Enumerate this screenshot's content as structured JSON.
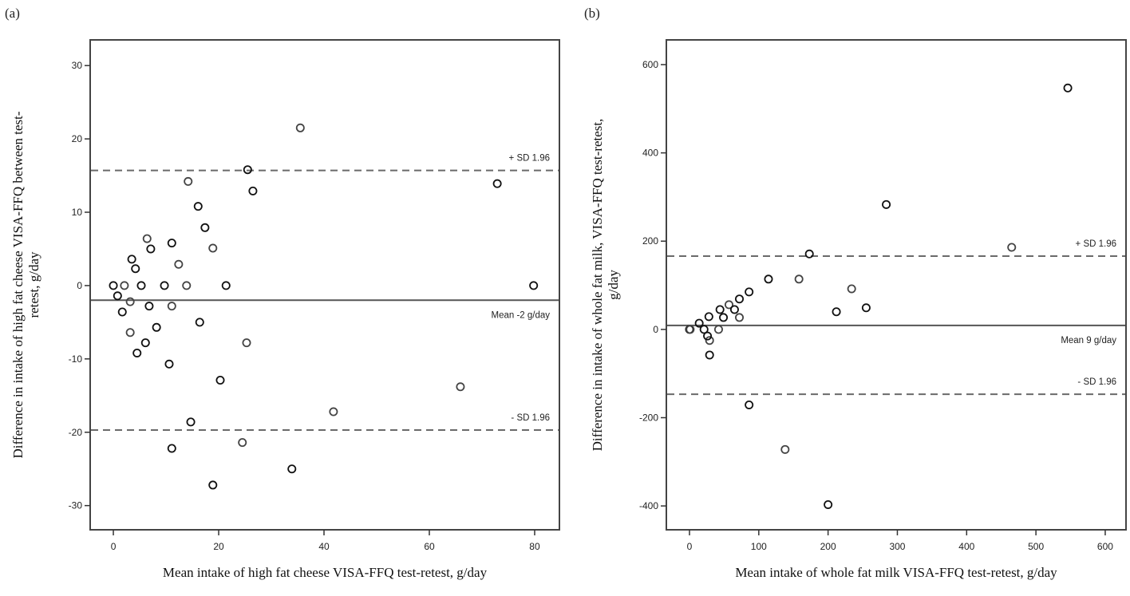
{
  "chart_data": [
    {
      "type": "scatter",
      "panel_label": "(a)",
      "title": "",
      "xlabel": "Mean intake of high fat cheese VISA-FFQ test-retest, g/day",
      "ylabel_lines": [
        "Difference in intake of high fat cheese VISA-FFQ between test-",
        "retest, g/day"
      ],
      "xlim": [
        -4.4,
        84.7
      ],
      "ylim": [
        -33.3,
        33.5
      ],
      "x_ticks": [
        0,
        20,
        40,
        60,
        80
      ],
      "y_ticks": [
        30,
        20,
        10,
        0,
        -10,
        -20,
        -30
      ],
      "grid": false,
      "reference_lines": [
        {
          "name": "upper-limit",
          "value": 15.7,
          "style": "dashed",
          "label": "+ SD 1.96"
        },
        {
          "name": "mean",
          "value": -2,
          "style": "solid",
          "label": "Mean -2 g/day"
        },
        {
          "name": "lower-limit",
          "value": -19.7,
          "style": "dashed",
          "label": "- SD 1.96"
        }
      ],
      "points": [
        [
          0,
          0
        ],
        [
          2.1,
          0
        ],
        [
          5.3,
          0
        ],
        [
          9.7,
          0
        ],
        [
          13.9,
          0
        ],
        [
          21.4,
          0
        ],
        [
          0.8,
          -1.4
        ],
        [
          3.2,
          -2.2
        ],
        [
          1.7,
          -3.6
        ],
        [
          6.8,
          -2.8
        ],
        [
          11.1,
          -2.8
        ],
        [
          16.4,
          -5.0
        ],
        [
          8.2,
          -5.7
        ],
        [
          3.2,
          -6.4
        ],
        [
          6.1,
          -7.8
        ],
        [
          4.5,
          -9.2
        ],
        [
          25.3,
          -7.8
        ],
        [
          10.6,
          -10.7
        ],
        [
          20.3,
          -12.9
        ],
        [
          41.8,
          -17.2
        ],
        [
          14.7,
          -18.6
        ],
        [
          11.1,
          -22.2
        ],
        [
          24.5,
          -21.4
        ],
        [
          33.9,
          -25.0
        ],
        [
          18.9,
          -27.2
        ],
        [
          65.9,
          -13.8
        ],
        [
          79.8,
          0
        ],
        [
          72.9,
          13.9
        ],
        [
          35.5,
          21.5
        ],
        [
          25.5,
          15.8
        ],
        [
          26.5,
          12.9
        ],
        [
          14.2,
          14.2
        ],
        [
          16.1,
          10.8
        ],
        [
          17.4,
          7.9
        ],
        [
          6.4,
          6.4
        ],
        [
          7.1,
          5.0
        ],
        [
          11.1,
          5.8
        ],
        [
          18.9,
          5.1
        ],
        [
          3.5,
          3.6
        ],
        [
          4.2,
          2.3
        ],
        [
          12.4,
          2.9
        ]
      ]
    },
    {
      "type": "scatter",
      "panel_label": "(b)",
      "title": "",
      "xlabel": "Mean intake of whole fat milk VISA-FFQ test-retest, g/day",
      "ylabel_lines": [
        "Difference in intake of whole fat milk, VISA-FFQ test-retest,",
        "g/day"
      ],
      "xlim": [
        -33.4,
        630
      ],
      "ylim": [
        -454,
        656
      ],
      "x_ticks": [
        0,
        100,
        200,
        300,
        400,
        500,
        600
      ],
      "y_ticks": [
        600,
        400,
        200,
        0,
        -200,
        -400
      ],
      "grid": false,
      "reference_lines": [
        {
          "name": "upper-limit",
          "value": 166,
          "style": "dashed",
          "label": "+ SD 1.96"
        },
        {
          "name": "mean",
          "value": 9,
          "style": "solid",
          "label": "Mean 9 g/day"
        },
        {
          "name": "lower-limit",
          "value": -147,
          "style": "dashed",
          "label": "- SD 1.96"
        }
      ],
      "points": [
        [
          0,
          0
        ],
        [
          1,
          0
        ],
        [
          14,
          14
        ],
        [
          21,
          0
        ],
        [
          29,
          -25
        ],
        [
          28,
          29
        ],
        [
          29,
          -58
        ],
        [
          42,
          0
        ],
        [
          44,
          45
        ],
        [
          49,
          27
        ],
        [
          57,
          56
        ],
        [
          65,
          45
        ],
        [
          72,
          69
        ],
        [
          72,
          27
        ],
        [
          86,
          85
        ],
        [
          114,
          114
        ],
        [
          158,
          114
        ],
        [
          173,
          171
        ],
        [
          212,
          40
        ],
        [
          234,
          92
        ],
        [
          255,
          49
        ],
        [
          284,
          283
        ],
        [
          465,
          186
        ],
        [
          546,
          547
        ],
        [
          86,
          -171
        ],
        [
          138,
          -272
        ],
        [
          200,
          -397
        ],
        [
          26,
          -15
        ]
      ]
    }
  ]
}
